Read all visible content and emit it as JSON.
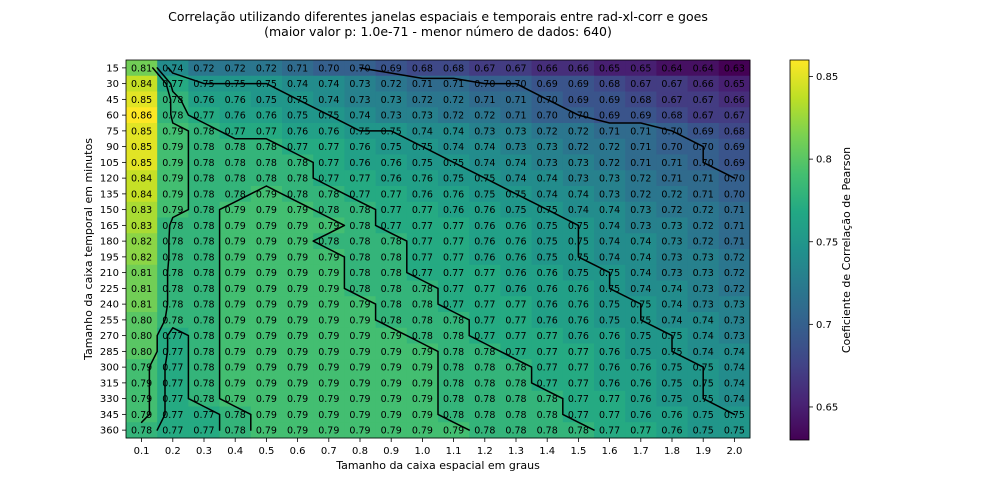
{
  "chart_data": {
    "type": "heatmap",
    "title": "Correlação utilizando diferentes janelas espaciais e temporais entre rad-xl-corr e goes",
    "subtitle": "(maior valor p: 1.0e-71 - menor número de dados: 640)",
    "xlabel": "Tamanho da caixa espacial em graus",
    "ylabel": "Tamanho da caixa temporal em minutos",
    "x": [
      "0.1",
      "0.2",
      "0.3",
      "0.4",
      "0.5",
      "0.6",
      "0.7",
      "0.8",
      "0.9",
      "1.0",
      "1.1",
      "1.2",
      "1.3",
      "1.4",
      "1.5",
      "1.6",
      "1.7",
      "1.8",
      "1.9",
      "2.0"
    ],
    "y": [
      "15",
      "30",
      "45",
      "60",
      "75",
      "90",
      "105",
      "120",
      "135",
      "150",
      "165",
      "180",
      "195",
      "210",
      "225",
      "240",
      "255",
      "270",
      "285",
      "300",
      "315",
      "330",
      "345",
      "360"
    ],
    "values": [
      [
        0.81,
        0.74,
        0.72,
        0.72,
        0.72,
        0.71,
        0.7,
        0.7,
        0.69,
        0.68,
        0.68,
        0.67,
        0.67,
        0.66,
        0.66,
        0.65,
        0.65,
        0.64,
        0.64,
        0.63
      ],
      [
        0.84,
        0.77,
        0.75,
        0.75,
        0.75,
        0.74,
        0.74,
        0.73,
        0.72,
        0.71,
        0.71,
        0.7,
        0.7,
        0.69,
        0.69,
        0.68,
        0.67,
        0.67,
        0.66,
        0.65
      ],
      [
        0.85,
        0.78,
        0.76,
        0.76,
        0.75,
        0.75,
        0.74,
        0.73,
        0.73,
        0.72,
        0.72,
        0.71,
        0.71,
        0.7,
        0.69,
        0.69,
        0.68,
        0.67,
        0.67,
        0.66
      ],
      [
        0.86,
        0.78,
        0.77,
        0.76,
        0.76,
        0.75,
        0.75,
        0.74,
        0.73,
        0.73,
        0.72,
        0.72,
        0.71,
        0.7,
        0.7,
        0.69,
        0.69,
        0.68,
        0.67,
        0.67
      ],
      [
        0.85,
        0.79,
        0.78,
        0.77,
        0.77,
        0.76,
        0.76,
        0.75,
        0.75,
        0.74,
        0.74,
        0.73,
        0.73,
        0.72,
        0.72,
        0.71,
        0.71,
        0.7,
        0.69,
        0.68
      ],
      [
        0.85,
        0.79,
        0.78,
        0.78,
        0.78,
        0.77,
        0.77,
        0.76,
        0.75,
        0.75,
        0.74,
        0.74,
        0.73,
        0.73,
        0.72,
        0.72,
        0.71,
        0.7,
        0.7,
        0.69
      ],
      [
        0.85,
        0.79,
        0.78,
        0.78,
        0.78,
        0.78,
        0.77,
        0.76,
        0.76,
        0.75,
        0.75,
        0.74,
        0.74,
        0.73,
        0.73,
        0.72,
        0.71,
        0.71,
        0.7,
        0.69
      ],
      [
        0.84,
        0.79,
        0.78,
        0.78,
        0.78,
        0.78,
        0.77,
        0.77,
        0.76,
        0.76,
        0.75,
        0.75,
        0.74,
        0.74,
        0.73,
        0.73,
        0.72,
        0.71,
        0.71,
        0.7
      ],
      [
        0.84,
        0.79,
        0.78,
        0.78,
        0.79,
        0.78,
        0.78,
        0.77,
        0.77,
        0.76,
        0.76,
        0.75,
        0.75,
        0.74,
        0.74,
        0.73,
        0.72,
        0.72,
        0.71,
        0.7
      ],
      [
        0.83,
        0.79,
        0.78,
        0.79,
        0.79,
        0.79,
        0.78,
        0.78,
        0.77,
        0.77,
        0.76,
        0.76,
        0.75,
        0.75,
        0.74,
        0.74,
        0.73,
        0.72,
        0.72,
        0.71
      ],
      [
        0.83,
        0.78,
        0.78,
        0.79,
        0.79,
        0.79,
        0.79,
        0.78,
        0.77,
        0.77,
        0.77,
        0.76,
        0.76,
        0.75,
        0.75,
        0.74,
        0.73,
        0.73,
        0.72,
        0.71
      ],
      [
        0.82,
        0.78,
        0.78,
        0.79,
        0.79,
        0.79,
        0.78,
        0.78,
        0.78,
        0.77,
        0.77,
        0.76,
        0.76,
        0.75,
        0.75,
        0.74,
        0.74,
        0.73,
        0.72,
        0.71
      ],
      [
        0.82,
        0.78,
        0.78,
        0.79,
        0.79,
        0.79,
        0.79,
        0.78,
        0.78,
        0.77,
        0.77,
        0.76,
        0.76,
        0.75,
        0.75,
        0.74,
        0.74,
        0.73,
        0.73,
        0.72
      ],
      [
        0.81,
        0.78,
        0.78,
        0.79,
        0.79,
        0.79,
        0.79,
        0.78,
        0.78,
        0.77,
        0.77,
        0.77,
        0.76,
        0.76,
        0.75,
        0.75,
        0.74,
        0.73,
        0.73,
        0.72
      ],
      [
        0.81,
        0.78,
        0.78,
        0.79,
        0.79,
        0.79,
        0.79,
        0.78,
        0.78,
        0.78,
        0.77,
        0.77,
        0.76,
        0.76,
        0.76,
        0.75,
        0.74,
        0.74,
        0.73,
        0.72
      ],
      [
        0.81,
        0.78,
        0.78,
        0.79,
        0.79,
        0.79,
        0.79,
        0.79,
        0.78,
        0.78,
        0.77,
        0.77,
        0.77,
        0.76,
        0.76,
        0.75,
        0.75,
        0.74,
        0.73,
        0.73
      ],
      [
        0.8,
        0.78,
        0.78,
        0.79,
        0.79,
        0.79,
        0.79,
        0.79,
        0.78,
        0.78,
        0.78,
        0.77,
        0.77,
        0.76,
        0.76,
        0.75,
        0.75,
        0.74,
        0.74,
        0.73
      ],
      [
        0.8,
        0.77,
        0.78,
        0.79,
        0.79,
        0.79,
        0.79,
        0.79,
        0.79,
        0.78,
        0.78,
        0.77,
        0.77,
        0.77,
        0.76,
        0.76,
        0.75,
        0.75,
        0.74,
        0.73
      ],
      [
        0.8,
        0.77,
        0.78,
        0.79,
        0.79,
        0.79,
        0.79,
        0.79,
        0.79,
        0.79,
        0.78,
        0.78,
        0.77,
        0.77,
        0.77,
        0.76,
        0.75,
        0.75,
        0.74,
        0.74
      ],
      [
        0.79,
        0.77,
        0.78,
        0.79,
        0.79,
        0.79,
        0.79,
        0.79,
        0.79,
        0.79,
        0.78,
        0.78,
        0.78,
        0.77,
        0.77,
        0.76,
        0.76,
        0.75,
        0.75,
        0.74
      ],
      [
        0.79,
        0.77,
        0.78,
        0.79,
        0.79,
        0.79,
        0.79,
        0.79,
        0.79,
        0.79,
        0.78,
        0.78,
        0.78,
        0.77,
        0.77,
        0.76,
        0.76,
        0.75,
        0.75,
        0.74
      ],
      [
        0.79,
        0.77,
        0.78,
        0.79,
        0.79,
        0.79,
        0.79,
        0.79,
        0.79,
        0.79,
        0.78,
        0.78,
        0.78,
        0.78,
        0.77,
        0.77,
        0.76,
        0.75,
        0.75,
        0.74
      ],
      [
        0.79,
        0.77,
        0.77,
        0.78,
        0.79,
        0.79,
        0.79,
        0.79,
        0.79,
        0.79,
        0.78,
        0.78,
        0.78,
        0.78,
        0.77,
        0.77,
        0.76,
        0.76,
        0.75,
        0.75
      ],
      [
        0.78,
        0.77,
        0.77,
        0.78,
        0.79,
        0.79,
        0.79,
        0.79,
        0.79,
        0.79,
        0.79,
        0.78,
        0.78,
        0.78,
        0.78,
        0.77,
        0.77,
        0.76,
        0.75,
        0.75
      ]
    ],
    "colormap": "viridis",
    "color_range": [
      0.63,
      0.86
    ],
    "colorbar": {
      "label": "Coeficiente de Correlação de Pearson",
      "ticks": [
        "0.65",
        "0.7",
        "0.75",
        "0.8",
        "0.85"
      ]
    },
    "contour_levels": [
      0.7,
      0.75,
      0.775,
      0.785
    ],
    "contour_color": "#000000"
  }
}
